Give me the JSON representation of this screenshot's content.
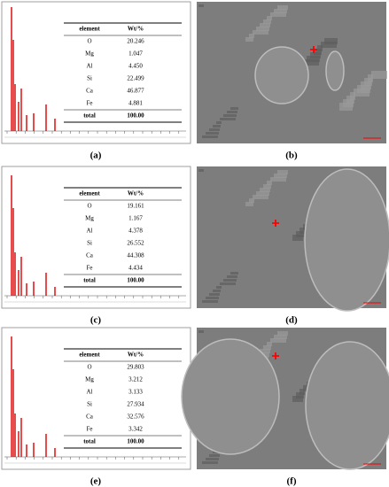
{
  "panels": [
    {
      "spectrum_label": "(a)",
      "image_label": "(b)",
      "table": {
        "header": [
          "element",
          "Wt/%"
        ],
        "rows": [
          [
            "O",
            "20.246"
          ],
          [
            "Mg",
            "1.047"
          ],
          [
            "Al",
            "4.450"
          ],
          [
            "Si",
            "22.499"
          ],
          [
            "Ca",
            "46.877"
          ],
          [
            "Fe",
            "4.881"
          ]
        ],
        "total": [
          "total",
          "100.00"
        ]
      }
    },
    {
      "spectrum_label": "(c)",
      "image_label": "(d)",
      "table": {
        "header": [
          "element",
          "Wt/%"
        ],
        "rows": [
          [
            "O",
            "19.161"
          ],
          [
            "Mg",
            "1.167"
          ],
          [
            "Al",
            "4.378"
          ],
          [
            "Si",
            "26.552"
          ],
          [
            "Ca",
            "44.308"
          ],
          [
            "Fe",
            "4.434"
          ]
        ],
        "total": [
          "total",
          "100.00"
        ]
      }
    },
    {
      "spectrum_label": "(e)",
      "image_label": "(f)",
      "table": {
        "header": [
          "element",
          "Wt/%"
        ],
        "rows": [
          [
            "O",
            "29.803"
          ],
          [
            "Mg",
            "3.212"
          ],
          [
            "Al",
            "3.133"
          ],
          [
            "Si",
            "27.934"
          ],
          [
            "Ca",
            "32.576"
          ],
          [
            "Fe",
            "3.342"
          ]
        ],
        "total": [
          "total",
          "100.00"
        ]
      }
    }
  ]
}
